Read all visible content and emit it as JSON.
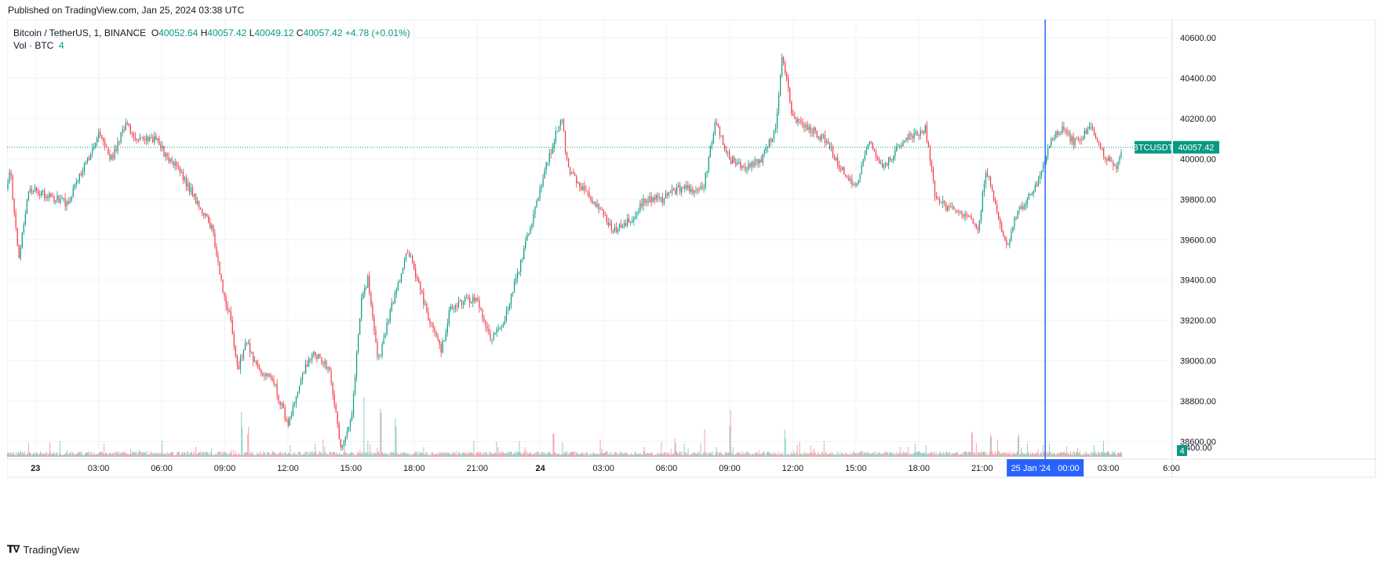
{
  "header": {
    "published": "Published on TradingView.com, Jan 25, 2024 03:38 UTC"
  },
  "legend": {
    "symbol": "Bitcoin / TetherUS, 1, BINANCE",
    "o_label": "O",
    "o": "40052.64",
    "h_label": "H",
    "h": "40057.42",
    "l_label": "L",
    "l": "40049.12",
    "c_label": "C",
    "c": "40057.42",
    "change": "+4.78 (+0.01%)",
    "vol_label": "Vol · BTC",
    "vol_value": "4"
  },
  "footer": {
    "logo_text": "TradingView"
  },
  "colors": {
    "up": "#089981",
    "down": "#f23645",
    "crosshair": "#2962ff",
    "grid": "#f0f3fa"
  },
  "chart_data": {
    "type": "candlestick",
    "price_axis": {
      "ticks": [
        "40600.00",
        "40400.00",
        "40200.00",
        "40000.00",
        "39800.00",
        "39600.00",
        "39400.00",
        "39200.00",
        "39000.00",
        "38800.00",
        "38600.00"
      ],
      "tick_values": [
        40600,
        40400,
        40200,
        40000,
        39800,
        39600,
        39400,
        39200,
        39000,
        38800,
        38600
      ],
      "volume_tick": "400.00",
      "last_price_label": "40057.42",
      "symbol_badge": "BTCUSDT",
      "volume_badge": "4",
      "range": [
        38520,
        40690
      ]
    },
    "time_axis": {
      "labels": [
        "23",
        "03:00",
        "06:00",
        "09:00",
        "12:00",
        "15:00",
        "18:00",
        "21:00",
        "24",
        "03:00",
        "06:00",
        "09:00",
        "12:00",
        "15:00",
        "18:00",
        "21:00",
        "03:00",
        "6:00"
      ],
      "hours": [
        0,
        3,
        6,
        9,
        12,
        15,
        18,
        21,
        24,
        27,
        30,
        33,
        36,
        39,
        42,
        45,
        51,
        54
      ],
      "bold": [
        "23",
        "24"
      ],
      "crosshair_label": "25 Jan '24   00:00",
      "crosshair_hour": 48,
      "start_hour": -1.35,
      "end_hour": 51.65
    },
    "price_path": [
      [
        -1.35,
        39850
      ],
      [
        -1.2,
        39950
      ],
      [
        -0.8,
        39500
      ],
      [
        -0.3,
        39850
      ],
      [
        0.5,
        39820
      ],
      [
        1.5,
        39780
      ],
      [
        2.5,
        40000
      ],
      [
        3.0,
        40130
      ],
      [
        3.6,
        40000
      ],
      [
        4.3,
        40170
      ],
      [
        5.0,
        40090
      ],
      [
        5.8,
        40100
      ],
      [
        6.2,
        40010
      ],
      [
        6.8,
        39950
      ],
      [
        7.5,
        39820
      ],
      [
        8.4,
        39650
      ],
      [
        9.0,
        39300
      ],
      [
        9.3,
        39200
      ],
      [
        9.6,
        38950
      ],
      [
        10.0,
        39100
      ],
      [
        10.6,
        38950
      ],
      [
        11.3,
        38900
      ],
      [
        12.0,
        38680
      ],
      [
        12.6,
        38900
      ],
      [
        13.2,
        39050
      ],
      [
        14.0,
        38950
      ],
      [
        14.5,
        38580
      ],
      [
        15.0,
        38700
      ],
      [
        15.5,
        39300
      ],
      [
        15.8,
        39400
      ],
      [
        16.3,
        39000
      ],
      [
        17.0,
        39300
      ],
      [
        17.7,
        39550
      ],
      [
        18.3,
        39350
      ],
      [
        18.7,
        39200
      ],
      [
        19.3,
        39050
      ],
      [
        19.7,
        39250
      ],
      [
        20.3,
        39300
      ],
      [
        21.0,
        39300
      ],
      [
        21.6,
        39100
      ],
      [
        22.3,
        39200
      ],
      [
        23.1,
        39500
      ],
      [
        24.1,
        39900
      ],
      [
        25.0,
        40220
      ],
      [
        25.3,
        39950
      ],
      [
        26.0,
        39850
      ],
      [
        26.8,
        39750
      ],
      [
        27.5,
        39650
      ],
      [
        28.3,
        39700
      ],
      [
        29.0,
        39800
      ],
      [
        29.8,
        39800
      ],
      [
        30.5,
        39850
      ],
      [
        31.3,
        39850
      ],
      [
        31.8,
        39880
      ],
      [
        32.3,
        40180
      ],
      [
        33.0,
        40000
      ],
      [
        33.8,
        39950
      ],
      [
        34.5,
        40000
      ],
      [
        35.2,
        40150
      ],
      [
        35.5,
        40520
      ],
      [
        36.0,
        40200
      ],
      [
        36.8,
        40150
      ],
      [
        37.5,
        40100
      ],
      [
        38.3,
        39950
      ],
      [
        39.0,
        39850
      ],
      [
        39.6,
        40100
      ],
      [
        40.3,
        39950
      ],
      [
        41.3,
        40100
      ],
      [
        42.3,
        40150
      ],
      [
        42.8,
        39800
      ],
      [
        43.5,
        39750
      ],
      [
        44.5,
        39700
      ],
      [
        44.8,
        39650
      ],
      [
        45.2,
        39950
      ],
      [
        46.2,
        39550
      ],
      [
        46.5,
        39700
      ],
      [
        47.5,
        39850
      ],
      [
        48.3,
        40100
      ],
      [
        48.8,
        40150
      ],
      [
        49.4,
        40080
      ],
      [
        50.2,
        40150
      ],
      [
        50.9,
        40000
      ],
      [
        51.4,
        39950
      ],
      [
        51.65,
        40057
      ]
    ],
    "volume_spikes": [
      [
        9.8,
        0.5
      ],
      [
        10.1,
        0.35
      ],
      [
        15.6,
        0.8
      ],
      [
        16.4,
        0.55
      ],
      [
        17.1,
        0.45
      ],
      [
        21.9,
        0.2
      ],
      [
        24.6,
        0.35
      ],
      [
        30.4,
        0.2
      ],
      [
        31.8,
        0.3
      ],
      [
        33.0,
        0.5
      ],
      [
        35.6,
        0.3
      ],
      [
        36.2,
        0.2
      ],
      [
        41.8,
        0.18
      ],
      [
        44.5,
        0.28
      ],
      [
        45.4,
        0.3
      ],
      [
        46.7,
        0.25
      ],
      [
        49.0,
        0.15
      ]
    ],
    "xlabel": "",
    "ylabel": ""
  }
}
